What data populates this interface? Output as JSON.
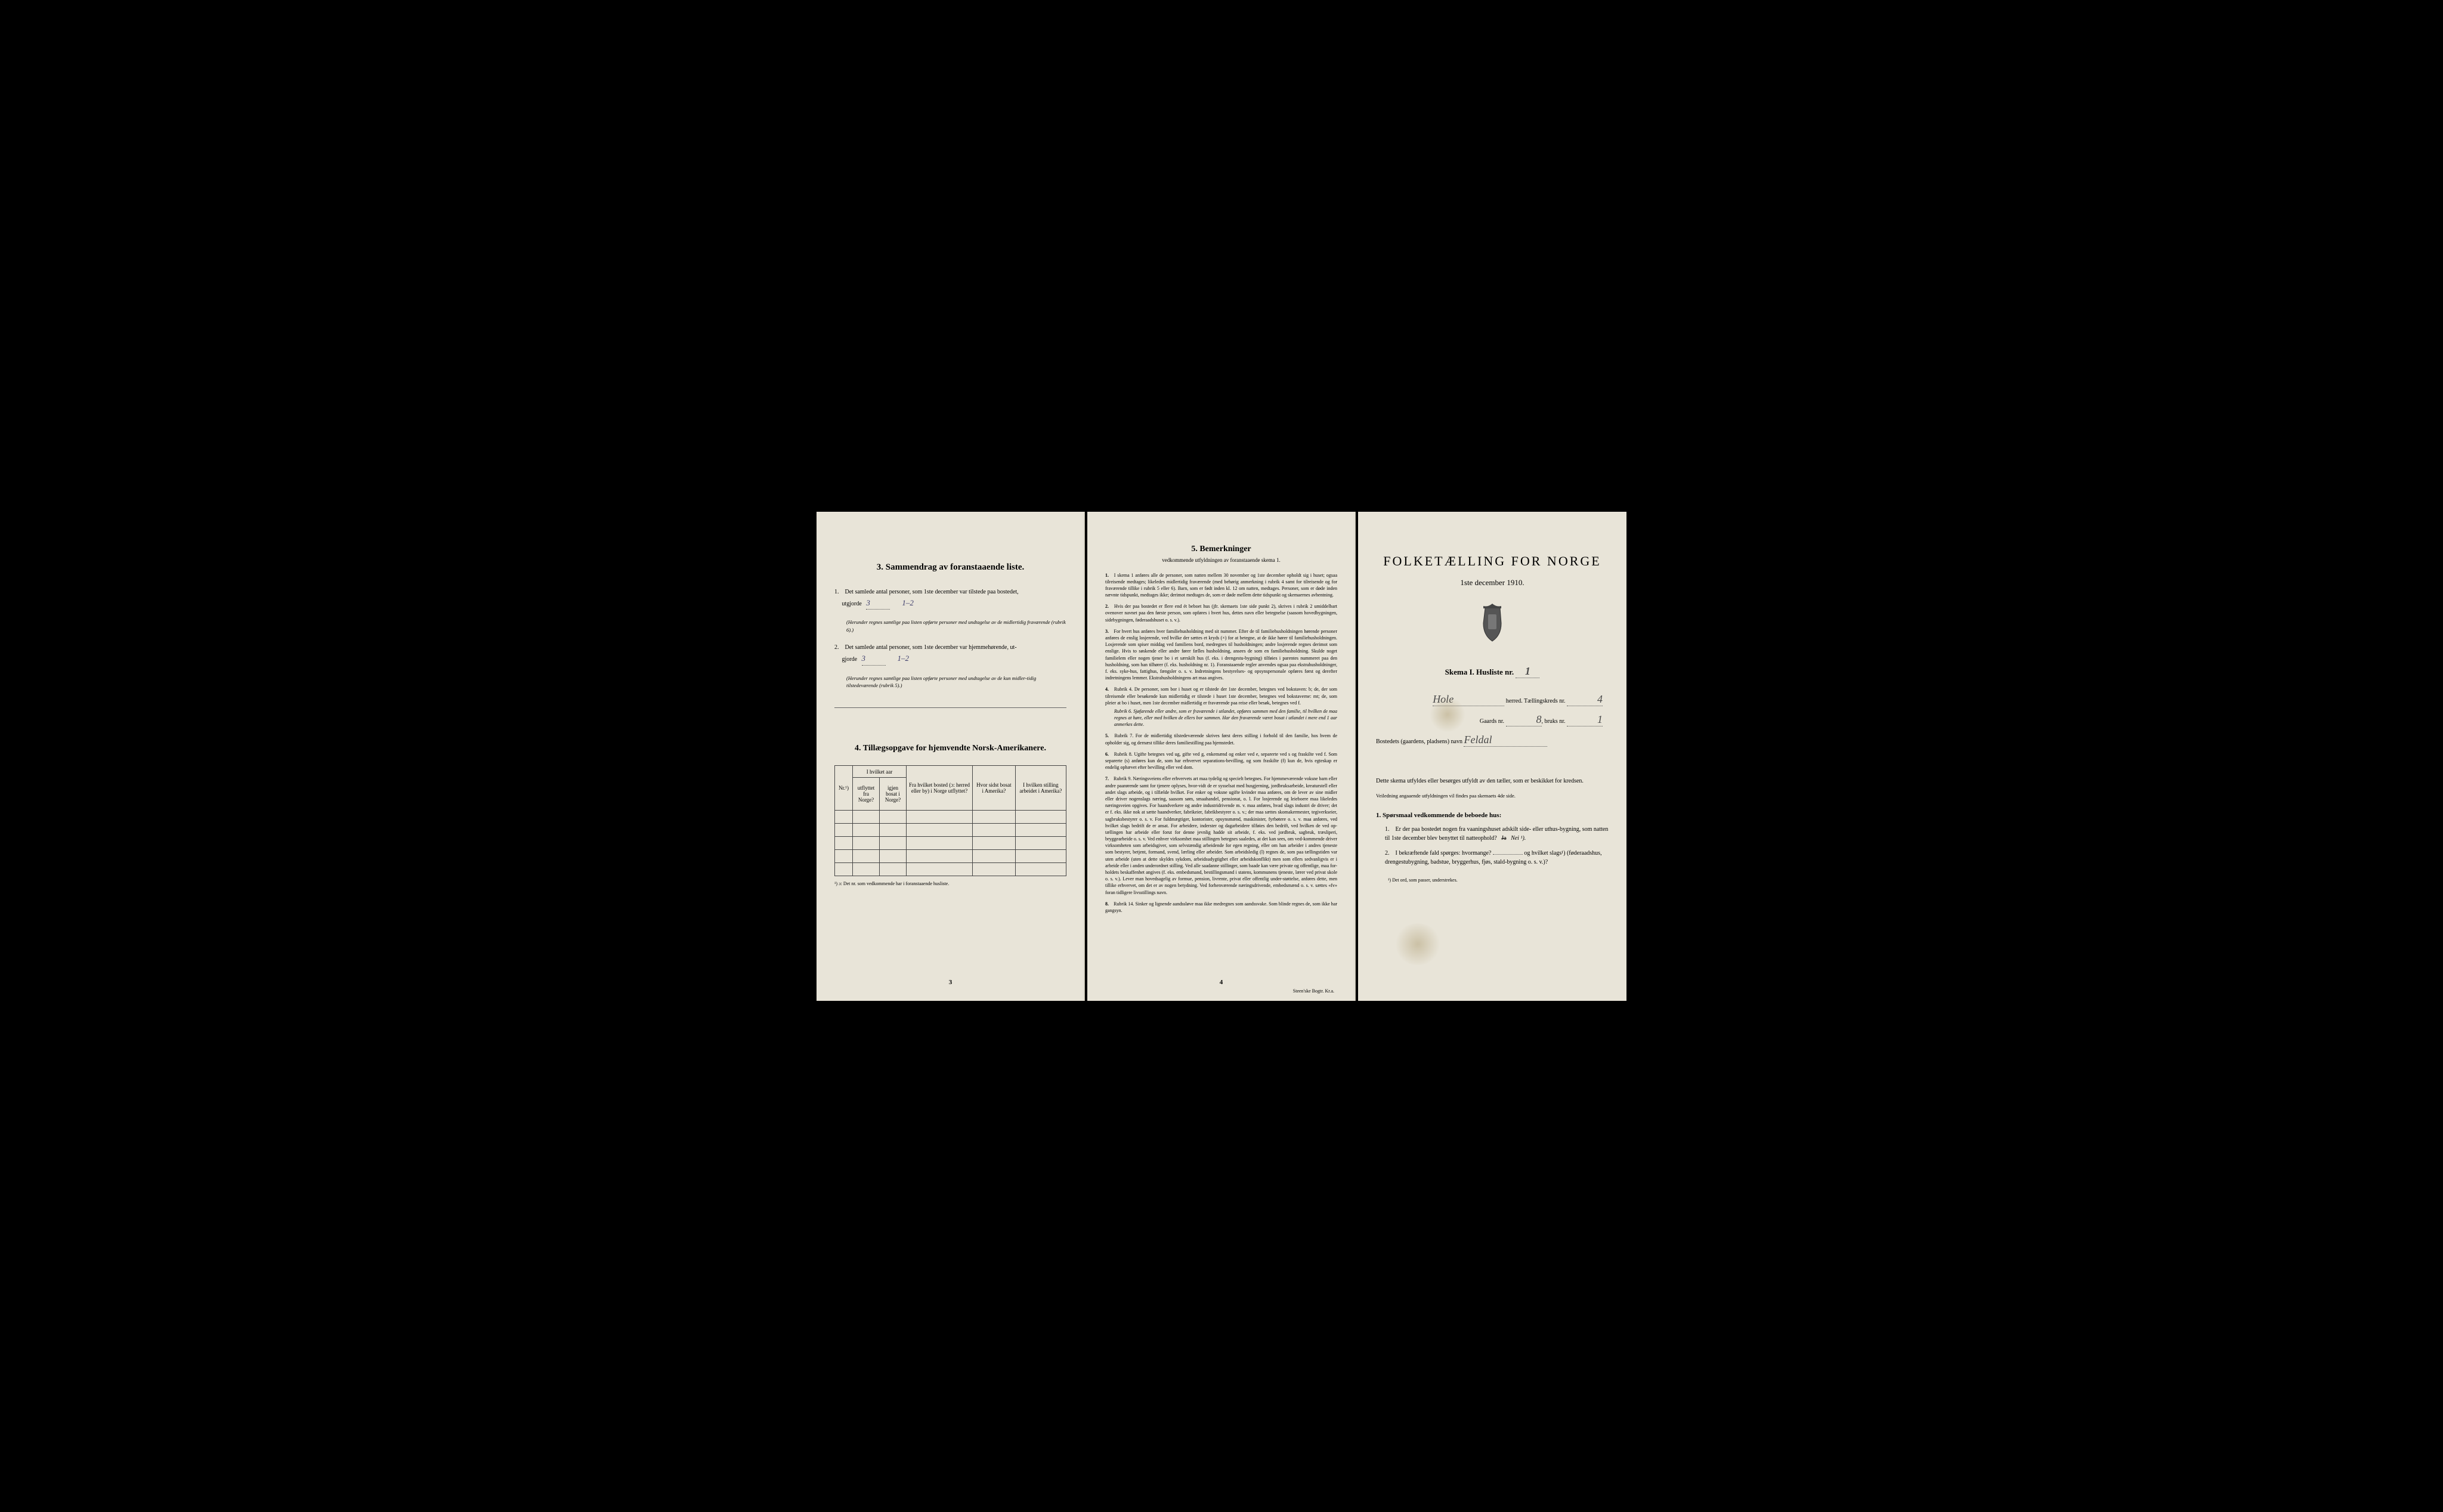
{
  "colors": {
    "paper": "#e8e4d8",
    "ink": "#1a1a1a",
    "handwriting": "#3a3a6a",
    "border": "#444444",
    "background": "#000000"
  },
  "page3": {
    "section3_heading": "3.   Sammendrag av foranstaaende liste.",
    "item1_text": "Det samlede antal personer, som 1ste december var tilstede paa bostedet,",
    "item1_label": "utgjorde",
    "item1_value": "3",
    "item1_range": "1–2",
    "item1_note": "(Herunder regnes samtlige paa listen opførte personer med undtagelse av de midlertidig fraværende (rubrik 6).)",
    "item2_text": "Det samlede antal personer, som 1ste december var hjemmehørende, ut-",
    "item2_label": "gjorde",
    "item2_value": "3",
    "item2_range": "1–2",
    "item2_note": "(Herunder regnes samtlige paa listen opførte personer med undtagelse av de kun midler-tidig tilstedeværende (rubrik 5).)",
    "section4_heading": "4.   Tillægsopgave for hjemvendte Norsk-Amerikanere.",
    "table_headers": {
      "nr": "Nr.¹)",
      "col1_top": "I hvilket aar",
      "col1a": "utflyttet fra Norge?",
      "col1b": "igjen bosat i Norge?",
      "col2": "Fra hvilket bosted (ɔ: herred eller by) i Norge utflyttet?",
      "col3": "Hvor sidst bosat i Amerika?",
      "col4": "I hvilken stilling arbeidet i Amerika?"
    },
    "footnote": "¹) ɔ: Det nr. som vedkommende har i foranstaaende husliste.",
    "page_num": "3"
  },
  "page4": {
    "heading": "5.   Bemerkninger",
    "subheading": "vedkommende utfyldningen av foranstaaende skema 1.",
    "items": [
      {
        "num": "1.",
        "text": "I skema 1 anføres alle de personer, som natten mellem 30 november og 1ste december opholdt sig i huset; ogsaa tilreisende medtages; likeledes midlertidig fraværende (med behørig anmerkning i rubrik 4 samt for tilreisende og for fraværende tillike i rubrik 5 eller 6). Barn, som er født inden kl. 12 om natten, medtages. Personer, som er døde inden nævnte tidspunkt, medtages ikke; derimot medtages de, som er døde mellem dette tidspunkt og skemaernes avhentning."
      },
      {
        "num": "2.",
        "text": "Hvis der paa bostedet er flere end ét beboet hus (jfr. skemaets 1ste side punkt 2), skrives i rubrik 2 umiddelbart ovenover navnet paa den første person, som opføres i hvert hus, dettes navn eller betegnelse (saasom hovedbygningen, sidebygningen, føderaadshuset o. s. v.)."
      },
      {
        "num": "3.",
        "text": "For hvert hus anføres hver familiehusholdning med sit nummer. Efter de til familiehusholdningen hørende personer anføres de enslig losjerende, ved hvilke der sættes et kryds (×) for at betegne, at de ikke hører til familiehusholdningen. Losjerende som spiser middag ved familiens bord, medregnes til husholdningen; andre losjerende regnes derimot som enslige. Hvis to søskende eller andre fører fælles husholdning, ansees de som en familiehusholdning. Skulde noget familielem eller nogen tjener bo i et særskilt hus (f. eks. i drengestu-bygning) tilføies i parentes nummeret paa den husholdning, som han tilhører (f. eks. husholdning nr. 1). Foranstaaende regler anvendes ogsaa paa ekstrahusholdninger, f. eks. syke-hus, fattighus, fængsler o. s. v. Indretningens bestyrelses- og opsynspersonale opføres først og derefter indretningens lemmer. Ekstrahusholdningens art maa angives."
      },
      {
        "num": "4.",
        "text": "Rubrik 4. De personer, som bor i huset og er tilstede der 1ste december, betegnes ved bokstaven: b; de, der som tilreisende eller besøkende kun midlertidig er tilstede i huset 1ste december, betegnes ved bokstaverne: mt; de, som pleier at bo i huset, men 1ste december midlertidig er fraværende paa reise eller besøk, betegnes ved f.",
        "rubriks": [
          "Rubrik 6. Sjøfarende eller andre, som er fraværende i utlandet, opføres sammen med den familie, til hvilken de maa regnes at høre, eller med hvilken de ellers bor sammen. Har den fraværende været bosat i utlandet i mere end 1 aar anmerkes dette."
        ]
      },
      {
        "num": "5.",
        "text": "Rubrik 7. For de midlertidig tilstedeværende skrives først deres stilling i forhold til den familie, hos hvem de opholder sig, og dernæst tillike deres familiestilling paa hjemstedet."
      },
      {
        "num": "6.",
        "text": "Rubrik 8. Ugifte betegnes ved ug, gifte ved g, enkemænd og enker ved e, separerte ved s og fraskilte ved f. Som separerte (s) anføres kun de, som har erhvervet separations-bevilling, og som fraskilte (f) kun de, hvis egteskap er endelig ophævet efter bevilling eller ved dom."
      },
      {
        "num": "7.",
        "text": "Rubrik 9. Næringsveiens eller erhvervets art maa tydelig og specielt betegnes. For hjemmeværende voksne barn eller andre paarørende samt for tjenere oplyses, hvor-vidt de er sysselsat med husgjerning, jordbruksarbeide, kreaturstell eller andet slags arbeide, og i tilfælde hvilket. For enker og voksne ugifte kvinder maa anføres, om de lever av sine midler eller driver nogenslags næring, saasom søm, smaahandel, pensionat, o. l. For losjerende og leieboere maa likeledes næringsveien opgives. For haandverkere og andre industridrivende m. v. maa anføres, hvad slags industri de driver; det er f. eks. ikke nok at sætte haandverker, fabrikeier, fabrikbestyrer o. s. v.; der maa sættes skomakermester, tegiverkseier, sagbruksbestyrer o. s. v. For fuldmægtiger, kontorister, opsynsmænd, maskinister, fyrbøtere o. s. v. maa anføres, ved hvilket slags bedrift de er ansat. For arbeidere, inderster og dagarbeidere tilføies den bedrift, ved hvilken de ved op-tællingen har arbeide eller forut for denne jevnlig hadde sit arbeide, f. eks. ved jordbruk, sagbruk, træsliperi, bryggearbeide o. s. v. Ved enhver virksomhet maa stillingen betegnes saaledes, at det kan sees, om ved-kommende driver virksomheten som arbeidsgiver, som selvstændig arbeidende for egen regning, eller om han arbeider i andres tjeneste som bestyrer, betjent, formand, svend, lærling eller arbeider. Som arbeidsledig (l) regnes de, som paa tællingstiden var uten arbeide (uten at dette skyldes sykdom, arbeidsudygtighet eller arbeidskonflikt) men som ellers sedvanligvis er i arbeide eller i anden underordnet stilling. Ved alle saadanne stillinger, som baade kan være private og offentlige, maa for-holdets beskaffenhet angives (f. eks. embedsmand, bestillingsmand i statens, kommunens tjeneste, lærer ved privat skole o. s. v.). Lever man hovedsagelig av formue, pension, livrente, privat eller offentlig under-støttelse, anføres dette, men tillike erhvervet, om det er av nogen betydning. Ved forhenværende næringsdrivende, embedsmænd o. s. v. sættes «fv» foran tidligere livsstillings navn."
      },
      {
        "num": "8.",
        "text": "Rubrik 14. Sinker og lignende aandssløve maa ikke medregnes som aandssvake. Som blinde regnes de, som ikke har gangsyn."
      }
    ],
    "page_num": "4",
    "printer": "Steen'ske Bogtr. Kr.a."
  },
  "page1": {
    "title": "FOLKETÆLLING FOR NORGE",
    "date": "1ste december 1910.",
    "skema_label": "Skema I.   Husliste nr.",
    "skema_nr": "1",
    "herred_value": "Hole",
    "herred_label": "herred.   Tællingskreds nr.",
    "kreds_nr": "4",
    "gaards_label": "Gaards nr.",
    "gaards_nr": "8",
    "bruks_label": "bruks nr.",
    "bruks_nr": "1",
    "bosted_label": "Bostedets (gaardens, pladsens) navn",
    "bosted_value": "Feldal",
    "instructions_text": "Dette skema utfyldes eller besørges utfyldt av den tæller, som er beskikket for kredsen.",
    "instructions_sub": "Veiledning angaaende utfyldningen vil findes paa skemaets 4de side.",
    "sporsmaal_heading": "1. Spørsmaal vedkommende de beboede hus:",
    "q1_text": "Er der paa bostedet nogen fra vaaningshuset adskilt side- eller uthus-bygning, som natten til 1ste december blev benyttet til natteophold?",
    "q1_ja": "Ja",
    "q1_nei": "Nei ¹).",
    "q2_text": "I bekræftende fald spørges: hvormange?",
    "q2_text2": "og hvilket slags¹) (føderaadshus, drengestubygning, badstue, bryggerhus, fjøs, stald-bygning o. s. v.)?",
    "footnote": "¹) Det ord, som passer, understrekes."
  }
}
